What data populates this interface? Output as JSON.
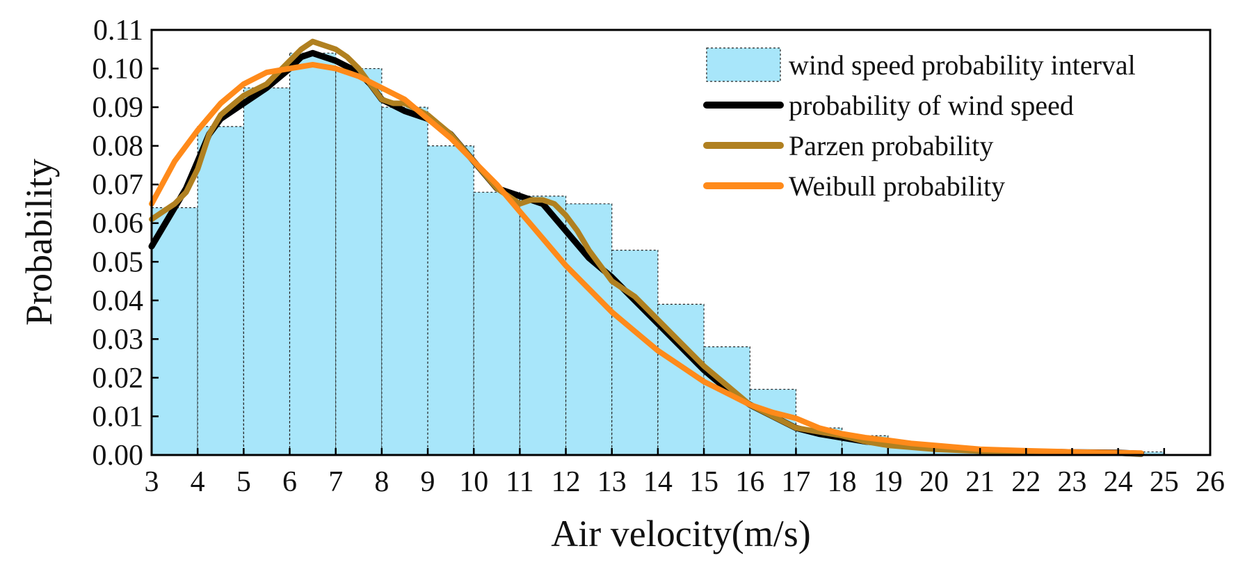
{
  "chart_data": {
    "type": "bar",
    "title": "",
    "xlabel": "Air velocity(m/s)",
    "ylabel": "Probability",
    "xlim": [
      3,
      26
    ],
    "ylim": [
      0,
      0.11
    ],
    "x_ticks": [
      3,
      4,
      5,
      6,
      7,
      8,
      9,
      10,
      11,
      12,
      13,
      14,
      15,
      16,
      17,
      18,
      19,
      20,
      21,
      22,
      23,
      24,
      25,
      26
    ],
    "x_tick_labels": [
      "3",
      "4",
      "5",
      "6",
      "7",
      "8",
      "9",
      "10",
      "11",
      "12",
      "13",
      "14",
      "15",
      "16",
      "17",
      "18",
      "19",
      "20",
      "21",
      "22",
      "23",
      "24",
      "25",
      "26"
    ],
    "y_ticks": [
      0,
      0.01,
      0.02,
      0.03,
      0.04,
      0.05,
      0.06,
      0.07,
      0.08,
      0.09,
      0.1,
      0.11
    ],
    "y_tick_labels": [
      "0.00",
      "0.01",
      "0.02",
      "0.03",
      "0.04",
      "0.05",
      "0.06",
      "0.07",
      "0.08",
      "0.09",
      "0.10",
      "0.11"
    ],
    "grid": false,
    "legend_position": "top-right",
    "histogram": {
      "name": "wind speed probability interval",
      "color": "#a8e6fa",
      "edge_color": "#222222",
      "bin_edges": [
        3,
        4,
        5,
        6,
        7,
        8,
        9,
        10,
        11,
        12,
        13,
        14,
        15,
        16,
        17,
        18,
        19,
        20,
        21,
        22,
        23,
        24,
        25
      ],
      "values": [
        0.064,
        0.085,
        0.095,
        0.104,
        0.1,
        0.09,
        0.08,
        0.068,
        0.067,
        0.065,
        0.053,
        0.039,
        0.028,
        0.017,
        0.007,
        0.005,
        0.003,
        0.002,
        0.0015,
        0.001,
        0.0008,
        0.0008
      ]
    },
    "series": [
      {
        "name": "probability of wind speed",
        "color": "#000000",
        "x": [
          3.0,
          3.25,
          3.5,
          3.75,
          4.0,
          4.25,
          4.5,
          5.0,
          5.5,
          6.0,
          6.25,
          6.5,
          7.0,
          7.5,
          7.75,
          8.0,
          8.5,
          9.0,
          9.5,
          10.0,
          10.5,
          11.0,
          11.5,
          12.0,
          12.5,
          13.0,
          13.5,
          14.0,
          14.5,
          15.0,
          15.5,
          16.0,
          16.5,
          17.0,
          17.5,
          18.0,
          18.5,
          19.0,
          20.0,
          21.0,
          22.0,
          23.0,
          24.0,
          24.5
        ],
        "y": [
          0.054,
          0.059,
          0.064,
          0.069,
          0.076,
          0.083,
          0.087,
          0.091,
          0.095,
          0.1,
          0.103,
          0.104,
          0.102,
          0.099,
          0.096,
          0.092,
          0.089,
          0.087,
          0.083,
          0.076,
          0.069,
          0.067,
          0.065,
          0.058,
          0.051,
          0.046,
          0.04,
          0.034,
          0.028,
          0.022,
          0.017,
          0.013,
          0.01,
          0.007,
          0.0055,
          0.0045,
          0.0035,
          0.003,
          0.0018,
          0.0012,
          0.0009,
          0.0007,
          0.0006,
          0.0003
        ]
      },
      {
        "name": "Parzen probability",
        "color": "#b08020",
        "x": [
          3.0,
          3.25,
          3.5,
          3.75,
          4.0,
          4.25,
          4.5,
          5.0,
          5.5,
          6.0,
          6.25,
          6.5,
          7.0,
          7.25,
          7.5,
          7.75,
          8.0,
          8.25,
          8.5,
          9.0,
          9.5,
          10.0,
          10.5,
          11.0,
          11.25,
          11.5,
          11.75,
          12.0,
          12.25,
          12.5,
          13.0,
          13.5,
          14.0,
          14.5,
          15.0,
          15.5,
          16.0,
          16.5,
          17.0,
          17.5,
          18.0,
          18.5,
          19.0,
          19.5,
          20.0,
          21.0,
          22.0,
          23.0,
          24.0,
          24.5
        ],
        "y": [
          0.061,
          0.063,
          0.065,
          0.068,
          0.074,
          0.083,
          0.088,
          0.093,
          0.096,
          0.102,
          0.105,
          0.107,
          0.105,
          0.103,
          0.1,
          0.096,
          0.092,
          0.091,
          0.091,
          0.088,
          0.083,
          0.076,
          0.069,
          0.065,
          0.066,
          0.066,
          0.065,
          0.062,
          0.058,
          0.053,
          0.045,
          0.041,
          0.035,
          0.029,
          0.023,
          0.018,
          0.013,
          0.01,
          0.007,
          0.006,
          0.005,
          0.0035,
          0.0025,
          0.002,
          0.0015,
          0.001,
          0.0008,
          0.0006,
          0.0005,
          0.0003
        ]
      },
      {
        "name": "Weibull probability",
        "color": "#ff8a1a",
        "x": [
          3.0,
          3.5,
          4.0,
          4.5,
          5.0,
          5.5,
          6.0,
          6.5,
          7.0,
          7.5,
          8.0,
          8.5,
          9.0,
          9.5,
          10.0,
          10.5,
          11.0,
          11.5,
          12.0,
          12.5,
          13.0,
          13.5,
          14.0,
          14.5,
          15.0,
          15.5,
          16.0,
          16.5,
          17.0,
          17.5,
          18.0,
          18.5,
          19.0,
          19.5,
          20.0,
          21.0,
          22.0,
          23.0,
          24.0,
          24.5
        ],
        "y": [
          0.065,
          0.076,
          0.084,
          0.091,
          0.096,
          0.099,
          0.1,
          0.101,
          0.1,
          0.098,
          0.095,
          0.092,
          0.087,
          0.082,
          0.076,
          0.07,
          0.063,
          0.056,
          0.049,
          0.043,
          0.037,
          0.032,
          0.027,
          0.023,
          0.019,
          0.016,
          0.013,
          0.011,
          0.0095,
          0.007,
          0.0055,
          0.0045,
          0.0038,
          0.003,
          0.0025,
          0.0015,
          0.0011,
          0.0008,
          0.0006,
          0.0005
        ]
      }
    ]
  }
}
